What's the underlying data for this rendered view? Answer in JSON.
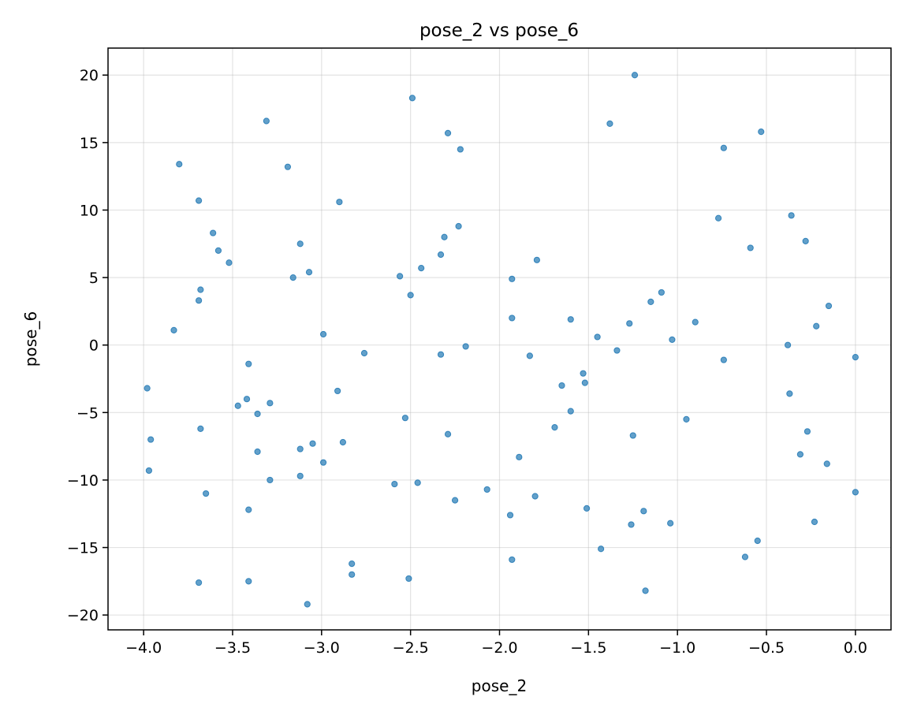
{
  "chart_data": {
    "type": "scatter",
    "title": "pose_2 vs pose_6",
    "xlabel": "pose_2",
    "ylabel": "pose_6",
    "xlim": [
      -4.2,
      0.2
    ],
    "ylim": [
      -21.1,
      22.0
    ],
    "grid": true,
    "color": "#1f77b4",
    "x_ticks": [
      -4.0,
      -3.5,
      -3.0,
      -2.5,
      -2.0,
      -1.5,
      -1.0,
      -0.5,
      0.0
    ],
    "x_tick_labels": [
      "−4.0",
      "−3.5",
      "−3.0",
      "−2.5",
      "−2.0",
      "−1.5",
      "−1.0",
      "−0.5",
      "0.0"
    ],
    "y_ticks": [
      -20,
      -15,
      -10,
      -5,
      0,
      5,
      10,
      15,
      20
    ],
    "y_tick_labels": [
      "−20",
      "−15",
      "−10",
      "−5",
      "0",
      "5",
      "10",
      "15",
      "20"
    ],
    "points": [
      [
        -1.24,
        20.0
      ],
      [
        -2.49,
        18.3
      ],
      [
        -3.31,
        16.6
      ],
      [
        -2.29,
        15.7
      ],
      [
        -1.38,
        16.4
      ],
      [
        -0.53,
        15.8
      ],
      [
        -2.22,
        14.5
      ],
      [
        -0.74,
        14.6
      ],
      [
        -3.8,
        13.4
      ],
      [
        -3.19,
        13.2
      ],
      [
        -3.69,
        10.7
      ],
      [
        -2.9,
        10.6
      ],
      [
        -0.77,
        9.4
      ],
      [
        -0.36,
        9.6
      ],
      [
        -3.61,
        8.3
      ],
      [
        -2.23,
        8.8
      ],
      [
        -2.31,
        8.0
      ],
      [
        -3.12,
        7.5
      ],
      [
        -0.28,
        7.7
      ],
      [
        -0.59,
        7.2
      ],
      [
        -3.58,
        7.0
      ],
      [
        -2.33,
        6.7
      ],
      [
        -1.79,
        6.3
      ],
      [
        -3.52,
        6.1
      ],
      [
        -2.44,
        5.7
      ],
      [
        -3.07,
        5.4
      ],
      [
        -2.56,
        5.1
      ],
      [
        -3.16,
        5.0
      ],
      [
        -1.93,
        4.9
      ],
      [
        -3.68,
        4.1
      ],
      [
        -1.09,
        3.9
      ],
      [
        -2.5,
        3.7
      ],
      [
        -3.69,
        3.3
      ],
      [
        -1.15,
        3.2
      ],
      [
        -0.15,
        2.9
      ],
      [
        -1.93,
        2.0
      ],
      [
        -1.6,
        1.9
      ],
      [
        -0.9,
        1.7
      ],
      [
        -1.27,
        1.6
      ],
      [
        -0.22,
        1.4
      ],
      [
        -3.83,
        1.1
      ],
      [
        -2.99,
        0.8
      ],
      [
        -1.45,
        0.6
      ],
      [
        -1.03,
        0.4
      ],
      [
        -0.38,
        0.0
      ],
      [
        -2.19,
        -0.1
      ],
      [
        -1.34,
        -0.4
      ],
      [
        -2.76,
        -0.6
      ],
      [
        -2.33,
        -0.7
      ],
      [
        -1.83,
        -0.8
      ],
      [
        -0.74,
        -1.1
      ],
      [
        0.0,
        -0.9
      ],
      [
        -3.41,
        -1.4
      ],
      [
        -1.53,
        -2.1
      ],
      [
        -1.52,
        -2.8
      ],
      [
        -1.65,
        -3.0
      ],
      [
        -3.98,
        -3.2
      ],
      [
        -2.91,
        -3.4
      ],
      [
        -0.37,
        -3.6
      ],
      [
        -3.42,
        -4.0
      ],
      [
        -3.29,
        -4.3
      ],
      [
        -3.47,
        -4.5
      ],
      [
        -3.36,
        -5.1
      ],
      [
        -1.6,
        -4.9
      ],
      [
        -2.53,
        -5.4
      ],
      [
        -0.95,
        -5.5
      ],
      [
        -1.69,
        -6.1
      ],
      [
        -3.68,
        -6.2
      ],
      [
        -0.27,
        -6.4
      ],
      [
        -2.29,
        -6.6
      ],
      [
        -1.25,
        -6.7
      ],
      [
        -3.96,
        -7.0
      ],
      [
        -3.05,
        -7.3
      ],
      [
        -2.88,
        -7.2
      ],
      [
        -3.12,
        -7.7
      ],
      [
        -3.36,
        -7.9
      ],
      [
        -0.31,
        -8.1
      ],
      [
        -1.89,
        -8.3
      ],
      [
        -2.99,
        -8.7
      ],
      [
        -0.16,
        -8.8
      ],
      [
        -3.97,
        -9.3
      ],
      [
        -3.12,
        -9.7
      ],
      [
        -3.29,
        -10.0
      ],
      [
        -2.46,
        -10.2
      ],
      [
        -2.59,
        -10.3
      ],
      [
        -2.07,
        -10.7
      ],
      [
        0.0,
        -10.9
      ],
      [
        -3.65,
        -11.0
      ],
      [
        -1.8,
        -11.2
      ],
      [
        -2.25,
        -11.5
      ],
      [
        -1.51,
        -12.1
      ],
      [
        -3.41,
        -12.2
      ],
      [
        -1.19,
        -12.3
      ],
      [
        -1.94,
        -12.6
      ],
      [
        -0.23,
        -13.1
      ],
      [
        -1.04,
        -13.2
      ],
      [
        -1.26,
        -13.3
      ],
      [
        -0.55,
        -14.5
      ],
      [
        -1.43,
        -15.1
      ],
      [
        -0.62,
        -15.7
      ],
      [
        -1.93,
        -15.9
      ],
      [
        -2.83,
        -16.2
      ],
      [
        -2.83,
        -17.0
      ],
      [
        -2.51,
        -17.3
      ],
      [
        -3.41,
        -17.5
      ],
      [
        -3.69,
        -17.6
      ],
      [
        -1.18,
        -18.2
      ],
      [
        -3.08,
        -19.2
      ]
    ]
  }
}
